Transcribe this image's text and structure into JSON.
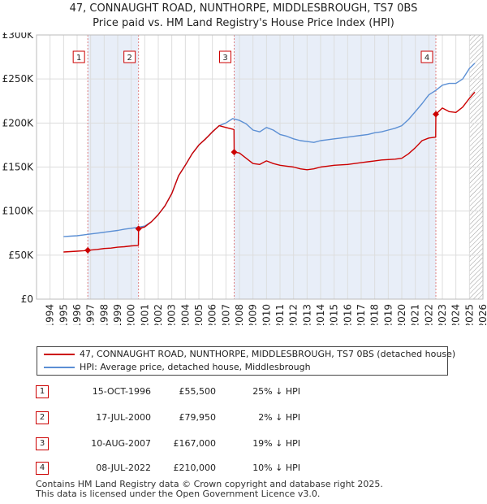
{
  "header": {
    "title": "47, CONNAUGHT ROAD, NUNTHORPE, MIDDLESBROUGH, TS7 0BS",
    "subtitle": "Price paid vs. HM Land Registry's House Price Index (HPI)"
  },
  "colors": {
    "property": "#cc0000",
    "hpi": "#5b8fd4",
    "band": "#e8eef8",
    "grid": "#dddddd",
    "marker_line": "#e08080"
  },
  "chart_data": {
    "type": "line",
    "title": "Price paid vs. HM Land Registry's House Price Index (HPI)",
    "xlabel": "",
    "ylabel": "",
    "xlim": [
      1993.0,
      2026.0
    ],
    "ylim": [
      0,
      300000
    ],
    "y_ticks": [
      0,
      50000,
      100000,
      150000,
      200000,
      250000,
      300000
    ],
    "y_tick_labels": [
      "£0",
      "£50K",
      "£100K",
      "£150K",
      "£200K",
      "£250K",
      "£300K"
    ],
    "x_ticks": [
      1994,
      1995,
      1996,
      1997,
      1998,
      1999,
      2000,
      2001,
      2002,
      2003,
      2004,
      2005,
      2006,
      2007,
      2008,
      2009,
      2010,
      2011,
      2012,
      2013,
      2014,
      2015,
      2016,
      2017,
      2018,
      2019,
      2020,
      2021,
      2022,
      2023,
      2024,
      2025,
      2026
    ],
    "x_tick_labels": [
      "1994",
      "1995",
      "1996",
      "1997",
      "1998",
      "1999",
      "2000",
      "2001",
      "2002",
      "2003",
      "2004",
      "2005",
      "2006",
      "2007",
      "2008",
      "2009",
      "2010",
      "2011",
      "2012",
      "2013",
      "2014",
      "2015",
      "2016",
      "2017",
      "2018",
      "2019",
      "2020",
      "2021",
      "2022",
      "2023",
      "2024",
      "2025",
      "2026"
    ],
    "shaded_bands": [
      [
        1996.79,
        2000.54
      ],
      [
        2007.61,
        2022.52
      ]
    ],
    "hatched_region": [
      2025.0,
      2026.0
    ],
    "series": [
      {
        "name": "47, CONNAUGHT ROAD, NUNTHORPE, MIDDLESBROUGH, TS7 0BS (detached house)",
        "x": [
          1995.0,
          1995.5,
          1996.0,
          1996.5,
          1996.79,
          1997.5,
          1998.0,
          1998.5,
          1999.0,
          1999.5,
          2000.0,
          2000.53,
          2000.54,
          2001.0,
          2001.5,
          2002.0,
          2002.5,
          2003.0,
          2003.5,
          2004.0,
          2004.5,
          2005.0,
          2005.5,
          2006.0,
          2006.5,
          2007.0,
          2007.5,
          2007.6,
          2007.61,
          2008.0,
          2008.5,
          2009.0,
          2009.5,
          2010.0,
          2010.5,
          2011.0,
          2011.5,
          2012.0,
          2012.5,
          2013.0,
          2013.5,
          2014.0,
          2014.5,
          2015.0,
          2015.5,
          2016.0,
          2016.5,
          2017.0,
          2017.5,
          2018.0,
          2018.5,
          2019.0,
          2019.5,
          2020.0,
          2020.5,
          2021.0,
          2021.5,
          2022.0,
          2022.51,
          2022.52,
          2023.0,
          2023.5,
          2024.0,
          2024.5,
          2025.0,
          2025.4
        ],
        "values": [
          53500,
          54000,
          54500,
          55000,
          55500,
          56500,
          57500,
          58000,
          59000,
          59500,
          60500,
          61000,
          79950,
          82000,
          88000,
          96000,
          106000,
          120000,
          140000,
          152000,
          165000,
          175000,
          182000,
          190000,
          197000,
          195000,
          193000,
          192500,
          167000,
          166000,
          160000,
          154000,
          153000,
          157000,
          154000,
          152000,
          151000,
          150000,
          148000,
          147000,
          148000,
          150000,
          151000,
          152000,
          152500,
          153000,
          154000,
          155000,
          156000,
          157000,
          158000,
          158500,
          159000,
          160000,
          165000,
          172000,
          180000,
          183000,
          184000,
          210000,
          217000,
          213000,
          212000,
          218000,
          228000,
          235000
        ]
      },
      {
        "name": "HPI: Average price, detached house, Middlesbrough",
        "x": [
          1995.0,
          1995.5,
          1996.0,
          1996.5,
          1997.0,
          1997.5,
          1998.0,
          1998.5,
          1999.0,
          1999.5,
          2000.0,
          2000.5,
          2001.0,
          2001.5,
          2002.0,
          2002.5,
          2003.0,
          2003.5,
          2004.0,
          2004.5,
          2005.0,
          2005.5,
          2006.0,
          2006.5,
          2007.0,
          2007.5,
          2008.0,
          2008.5,
          2009.0,
          2009.5,
          2010.0,
          2010.5,
          2011.0,
          2011.5,
          2012.0,
          2012.5,
          2013.0,
          2013.5,
          2014.0,
          2014.5,
          2015.0,
          2015.5,
          2016.0,
          2016.5,
          2017.0,
          2017.5,
          2018.0,
          2018.5,
          2019.0,
          2019.5,
          2020.0,
          2020.5,
          2021.0,
          2021.5,
          2022.0,
          2022.5,
          2023.0,
          2023.5,
          2024.0,
          2024.5,
          2025.0,
          2025.4
        ],
        "values": [
          71000,
          71500,
          72000,
          73000,
          74000,
          75000,
          76000,
          77000,
          78000,
          79500,
          80500,
          81500,
          83000,
          88000,
          96000,
          106000,
          120000,
          140000,
          152000,
          165000,
          175000,
          182000,
          190000,
          197000,
          200000,
          205000,
          203000,
          199000,
          192000,
          190000,
          195000,
          192000,
          187000,
          185000,
          182000,
          180000,
          179000,
          178000,
          180000,
          181000,
          182000,
          183000,
          184000,
          185000,
          186000,
          187000,
          189000,
          190000,
          192000,
          194000,
          197000,
          204000,
          213000,
          222000,
          232000,
          237000,
          243000,
          245000,
          245000,
          250000,
          262000,
          268000
        ]
      }
    ],
    "sales": [
      {
        "label": "1",
        "x": 1996.79,
        "value": 55500
      },
      {
        "label": "2",
        "x": 2000.54,
        "value": 79950
      },
      {
        "label": "3",
        "x": 2007.61,
        "value": 167000
      },
      {
        "label": "4",
        "x": 2022.52,
        "value": 210000
      }
    ]
  },
  "legend": {
    "property_label": "47, CONNAUGHT ROAD, NUNTHORPE, MIDDLESBROUGH, TS7 0BS (detached house)",
    "hpi_label": "HPI: Average price, detached house, Middlesbrough"
  },
  "table": [
    {
      "num": "1",
      "date": "15-OCT-1996",
      "price": "£55,500",
      "hpi": "25% ↓ HPI"
    },
    {
      "num": "2",
      "date": "17-JUL-2000",
      "price": "£79,950",
      "hpi": "2% ↓ HPI"
    },
    {
      "num": "3",
      "date": "10-AUG-2007",
      "price": "£167,000",
      "hpi": "19% ↓ HPI"
    },
    {
      "num": "4",
      "date": "08-JUL-2022",
      "price": "£210,000",
      "hpi": "10% ↓ HPI"
    }
  ],
  "footer": {
    "line1": "Contains HM Land Registry data © Crown copyright and database right 2025.",
    "line2": "This data is licensed under the Open Government Licence v3.0."
  }
}
